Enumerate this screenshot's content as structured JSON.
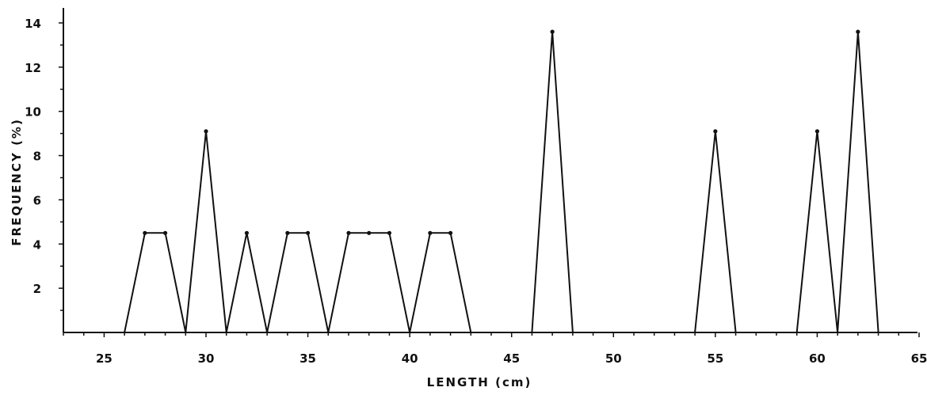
{
  "chart_data": {
    "type": "line",
    "title": "",
    "xlabel": "LENGTH (cm)",
    "ylabel": "FREQUENCY (%)",
    "xlim": [
      23,
      65
    ],
    "ylim": [
      0,
      14.5
    ],
    "x_ticks": [
      25,
      30,
      35,
      40,
      45,
      50,
      55,
      60,
      65
    ],
    "y_ticks": [
      2,
      4,
      6,
      8,
      10,
      12,
      14
    ],
    "grid": false,
    "legend": "none",
    "series": [
      {
        "x": [
          26,
          27,
          28,
          29,
          30,
          31,
          32,
          33,
          34,
          35,
          36,
          37,
          38,
          39,
          40,
          41,
          42,
          43,
          46,
          47,
          48,
          54,
          55,
          56,
          59,
          60,
          61,
          62,
          63
        ],
        "y": [
          0,
          4.5,
          4.5,
          0,
          9.1,
          0,
          4.5,
          0,
          4.5,
          4.5,
          0,
          4.5,
          4.5,
          4.5,
          0,
          4.5,
          4.5,
          0,
          0,
          13.6,
          0,
          0,
          9.1,
          0,
          0,
          9.1,
          0,
          13.6,
          0
        ]
      }
    ]
  }
}
